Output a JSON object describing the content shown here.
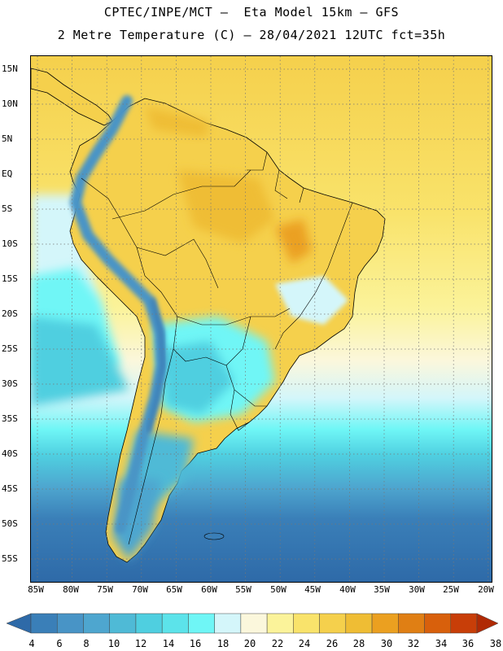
{
  "header": {
    "line1": "CPTEC/INPE/MCT –  Eta Model 15km – GFS",
    "line2": "2 Metre Temperature (C) – 28/04/2021 12UTC fct=35h"
  },
  "map": {
    "lat_labels": [
      "15N",
      "10N",
      "5N",
      "EQ",
      "5S",
      "10S",
      "15S",
      "20S",
      "25S",
      "30S",
      "35S",
      "40S",
      "45S",
      "50S",
      "55S"
    ],
    "lon_labels": [
      "85W",
      "80W",
      "75W",
      "70W",
      "65W",
      "60W",
      "55W",
      "50W",
      "45W",
      "40W",
      "35W",
      "30W",
      "25W",
      "20W"
    ],
    "lon_range": [
      -86,
      -19
    ],
    "lat_range": [
      17,
      -58
    ],
    "grid": "dotted"
  },
  "colorbar": {
    "labels": [
      "4",
      "6",
      "8",
      "10",
      "12",
      "14",
      "16",
      "18",
      "20",
      "22",
      "24",
      "26",
      "28",
      "30",
      "32",
      "34",
      "36",
      "38"
    ],
    "colors": [
      "#2e6aa8",
      "#3a7fb8",
      "#4894c6",
      "#4ea6cf",
      "#4fbad6",
      "#4fcfe0",
      "#5ce3ea",
      "#6ff6f6",
      "#d4f6fa",
      "#fbf7dc",
      "#fbf39a",
      "#f9e36b",
      "#f5d04c",
      "#efbd34",
      "#eba020",
      "#e07f14",
      "#d8600c",
      "#c83e08",
      "#b02a04"
    ]
  },
  "colors": {
    "ocean_south": "#2e6aa8",
    "land_warm": "#f5d04c",
    "andes_cool": "#4894c6"
  }
}
